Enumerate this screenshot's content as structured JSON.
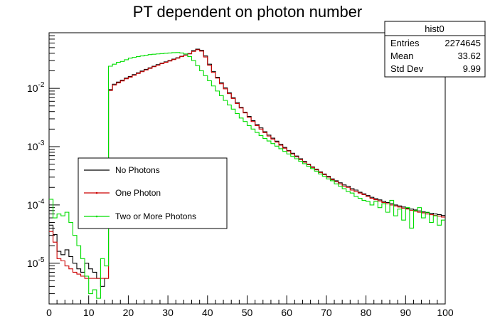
{
  "chart_data": {
    "type": "line",
    "title": "PT dependent on photon number",
    "xlabel": "",
    "ylabel": "",
    "xlim": [
      0,
      100
    ],
    "ylim": [
      2e-06,
      0.09
    ],
    "y_scale": "log",
    "grid": false,
    "legend_position": "left-center",
    "x_ticks": [
      0,
      10,
      20,
      30,
      40,
      50,
      60,
      70,
      80,
      90,
      100
    ],
    "y_ticks": [
      {
        "value": 1e-05,
        "base": "10",
        "exponent": "-5"
      },
      {
        "value": 0.0001,
        "base": "10",
        "exponent": "-4"
      },
      {
        "value": 0.001,
        "base": "10",
        "exponent": "-3"
      },
      {
        "value": 0.01,
        "base": "10",
        "exponent": "-2"
      }
    ],
    "stats_box": {
      "name": "hist0",
      "rows": [
        {
          "label": "Entries",
          "value": "2274645"
        },
        {
          "label": "Mean",
          "value": "33.62"
        },
        {
          "label": "Std Dev",
          "value": "9.99"
        }
      ]
    },
    "bin_width": 1,
    "series": [
      {
        "name": "No Photons",
        "color": "#000000",
        "values": [
          4.5e-05,
          3.1e-05,
          1.6e-05,
          1.4e-05,
          1.7e-05,
          1.3e-05,
          1e-05,
          8e-06,
          7e-06,
          1e-05,
          8e-06,
          7e-06,
          5.5e-06,
          4e-06,
          5.5e-06,
          0.0095,
          0.0118,
          0.0128,
          0.0138,
          0.015,
          0.016,
          0.0172,
          0.0185,
          0.0198,
          0.0212,
          0.0225,
          0.024,
          0.0255,
          0.027,
          0.0285,
          0.03,
          0.0318,
          0.0335,
          0.0355,
          0.0375,
          0.0395,
          0.0445,
          0.047,
          0.045,
          0.036,
          0.026,
          0.0195,
          0.0155,
          0.0125,
          0.0102,
          0.0084,
          0.0069,
          0.0057,
          0.0047,
          0.0039,
          0.0033,
          0.0028,
          0.0024,
          0.0021,
          0.0018,
          0.00158,
          0.0014,
          0.00124,
          0.0011,
          0.00097,
          0.00086,
          0.00077,
          0.00069,
          0.00062,
          0.00056,
          0.0005,
          0.00045,
          0.00041,
          0.00037,
          0.00034,
          0.00031,
          0.00028,
          0.00026,
          0.00024,
          0.00022,
          0.00021,
          0.00019,
          0.00018,
          0.000165,
          0.000155,
          0.000145,
          0.000135,
          0.000128,
          0.000122,
          0.000115,
          0.00011,
          0.000105,
          0.0001,
          9.6e-05,
          9.2e-05,
          8.8e-05,
          8.5e-05,
          8.2e-05,
          7.9e-05,
          7.6e-05,
          7.4e-05,
          7.2e-05,
          7e-05,
          6.8e-05,
          6.6e-05
        ]
      },
      {
        "name": "One Photon",
        "color": "#cc0000",
        "values": [
          3.5e-05,
          2.3e-05,
          1.2e-05,
          1.1e-05,
          9e-06,
          8e-06,
          7e-06,
          6.5e-06,
          6e-06,
          5.5e-06,
          5.5e-06,
          5.5e-06,
          5.5e-06,
          5.5e-06,
          5.5e-06,
          0.0092,
          0.0114,
          0.0124,
          0.0134,
          0.0146,
          0.0156,
          0.0168,
          0.018,
          0.0193,
          0.0207,
          0.022,
          0.0235,
          0.025,
          0.0265,
          0.028,
          0.0295,
          0.0312,
          0.033,
          0.035,
          0.037,
          0.039,
          0.043,
          0.046,
          0.0435,
          0.0345,
          0.025,
          0.0188,
          0.015,
          0.012,
          0.0098,
          0.0081,
          0.0067,
          0.0055,
          0.0046,
          0.0038,
          0.0032,
          0.0027,
          0.0023,
          0.002,
          0.00174,
          0.00152,
          0.00135,
          0.0012,
          0.00106,
          0.00094,
          0.00084,
          0.00075,
          0.00067,
          0.0006,
          0.00054,
          0.00049,
          0.00044,
          0.0004,
          0.00036,
          0.00033,
          0.0003,
          0.00027,
          0.00025,
          0.00023,
          0.00021,
          0.0002,
          0.00018,
          0.00017,
          0.00016,
          0.00015,
          0.00014,
          0.00013,
          0.000123,
          0.000117,
          0.00011,
          0.000105,
          0.0001,
          9.6e-05,
          9.2e-05,
          8.8e-05,
          8.5e-05,
          8.1e-05,
          7.8e-05,
          7.5e-05,
          7.3e-05,
          7e-05,
          6.8e-05,
          6.6e-05,
          6.4e-05,
          6.2e-05
        ]
      },
      {
        "name": "Two or More Photons",
        "color": "#00dd00",
        "values": [
          0.000125,
          6e-05,
          7e-05,
          6.5e-05,
          7.5e-05,
          5e-05,
          3e-05,
          2e-05,
          1.2e-05,
          6e-06,
          3e-06,
          3.5e-06,
          2.5e-06,
          1.2e-05,
          9e-06,
          0.024,
          0.026,
          0.028,
          0.029,
          0.031,
          0.033,
          0.034,
          0.035,
          0.036,
          0.037,
          0.038,
          0.0385,
          0.039,
          0.0395,
          0.04,
          0.0405,
          0.041,
          0.0412,
          0.0405,
          0.039,
          0.035,
          0.03,
          0.0245,
          0.02,
          0.0165,
          0.0135,
          0.011,
          0.009,
          0.0075,
          0.0062,
          0.0052,
          0.0044,
          0.0037,
          0.0031,
          0.0027,
          0.0023,
          0.002,
          0.00175,
          0.00155,
          0.00138,
          0.00125,
          0.00113,
          0.00102,
          0.00092,
          0.00083,
          0.00075,
          0.00068,
          0.00062,
          0.00056,
          0.00051,
          0.00046,
          0.00042,
          0.00038,
          0.00034,
          0.00031,
          0.00028,
          0.00026,
          0.00023,
          0.00021,
          0.00019,
          0.00017,
          0.00016,
          0.00014,
          0.00013,
          0.00012,
          0.000115,
          0.0001,
          0.000115,
          9e-05,
          0.000105,
          7.5e-05,
          0.00012,
          6.5e-05,
          8.5e-05,
          5.5e-05,
          9e-05,
          4e-05,
          8e-05,
          9e-05,
          6e-05,
          7.5e-05,
          5e-05,
          6.5e-05,
          4.5e-05,
          5.5e-05
        ]
      }
    ]
  }
}
